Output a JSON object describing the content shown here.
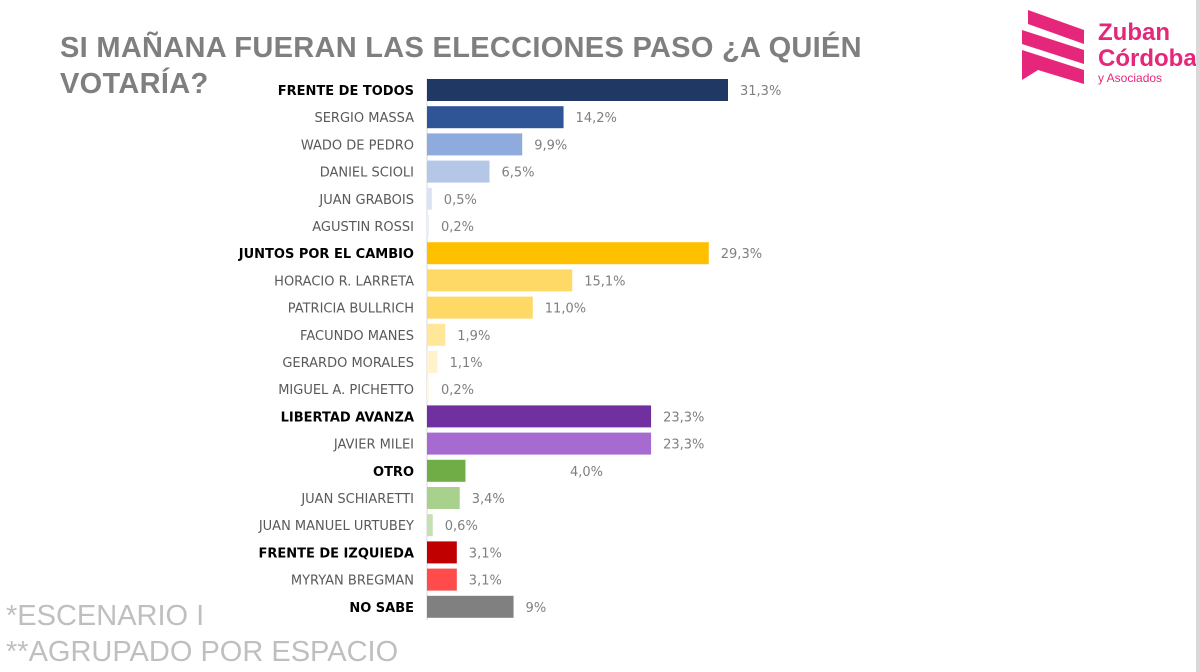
{
  "title": "SI MAÑANA FUERAN LAS ELECCIONES PASO ¿A QUIÉN VOTARÍA?",
  "notes": [
    "*ESCENARIO I",
    "**AGRUPADO POR ESPACIO"
  ],
  "logo": {
    "line1": "Zuban",
    "line2": "Córdoba",
    "line3": "y Asociados",
    "color": "#e6267b"
  },
  "chart_data": {
    "type": "bar",
    "orientation": "horizontal",
    "unit": "%",
    "categories": [
      "FRENTE DE TODOS",
      "SERGIO MASSA",
      "WADO DE PEDRO",
      "DANIEL SCIOLI",
      "JUAN GRABOIS",
      "AGUSTIN ROSSI",
      "JUNTOS POR EL CAMBIO",
      "HORACIO R. LARRETA",
      "PATRICIA BULLRICH",
      "FACUNDO MANES",
      "GERARDO MORALES",
      "MIGUEL A. PICHETTO",
      "LIBERTAD AVANZA",
      "JAVIER MILEI",
      "OTRO",
      "JUAN SCHIARETTI",
      "JUAN MANUEL URTUBEY",
      "FRENTE DE IZQUIEDA",
      "MYRYAN BREGMAN",
      "NO SABE"
    ],
    "values": [
      31.3,
      14.2,
      9.9,
      6.5,
      0.5,
      0.2,
      29.3,
      15.1,
      11.0,
      1.9,
      1.1,
      0.2,
      23.3,
      23.3,
      4.0,
      3.4,
      0.6,
      3.1,
      3.1,
      9
    ],
    "value_labels": [
      "31,3%",
      "14,2%",
      "9,9%",
      "6,5%",
      "0,5%",
      "0,2%",
      "29,3%",
      "15,1%",
      "11,0%",
      "1,9%",
      "1,1%",
      "0,2%",
      "23,3%",
      "23,3%",
      "4,0%",
      "3,4%",
      "0,6%",
      "3,1%",
      "3,1%",
      "9%"
    ],
    "bold": [
      true,
      false,
      false,
      false,
      false,
      false,
      true,
      false,
      false,
      false,
      false,
      false,
      true,
      false,
      true,
      false,
      false,
      true,
      false,
      true
    ],
    "colors": [
      "#1f3864",
      "#2f5597",
      "#8faadc",
      "#b4c7e7",
      "#dae3f3",
      "#e9eff8",
      "#ffc000",
      "#ffd966",
      "#ffd966",
      "#ffe699",
      "#fff2cc",
      "#fff7e0",
      "#7030a0",
      "#a66ad0",
      "#70ad47",
      "#a9d18e",
      "#c5e0b4",
      "#c00000",
      "#ff4b4b",
      "#808080"
    ],
    "xlim": [
      0,
      33
    ],
    "grid": false
  }
}
